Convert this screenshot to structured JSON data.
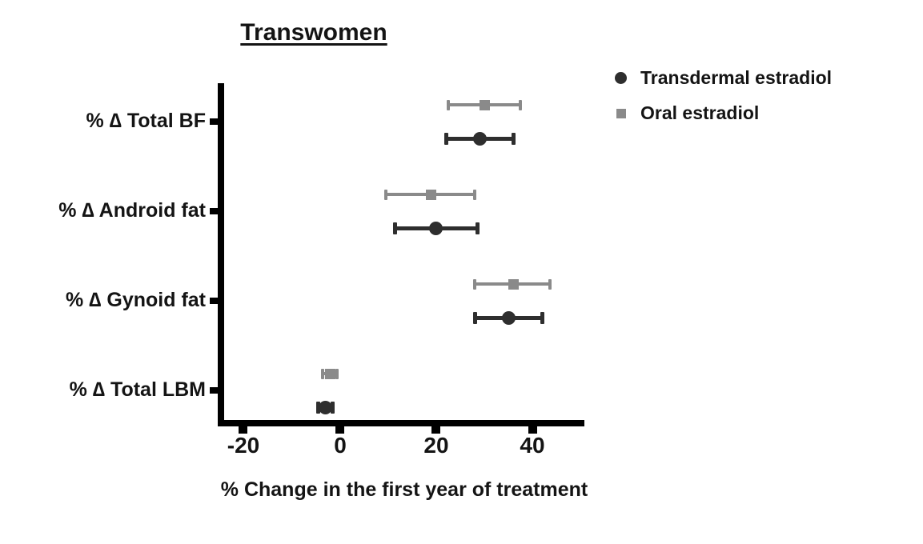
{
  "chart_data": {
    "type": "scatter",
    "title": "Transwomen",
    "xlabel": "% Change in the first year of treatment",
    "xlim": [
      -25.3,
      50.7
    ],
    "xticks": [
      {
        "value": -20,
        "label": "-20"
      },
      {
        "value": 0,
        "label": "0"
      },
      {
        "value": 20,
        "label": "20"
      },
      {
        "value": 40,
        "label": "40"
      }
    ],
    "categories": [
      "% ∆ Total BF",
      "% ∆ Android fat",
      "% ∆ Gynoid fat",
      "% ∆ Total LBM"
    ],
    "series": [
      {
        "name": "Transdermal estradiol",
        "marker": "circle",
        "color": "#2e2e2e",
        "points": [
          {
            "category": "% ∆ Total BF",
            "mean": 29,
            "low": 22,
            "high": 36
          },
          {
            "category": "% ∆ Android fat",
            "mean": 20,
            "low": 11.5,
            "high": 28.5
          },
          {
            "category": "% ∆ Gynoid fat",
            "mean": 35,
            "low": 28,
            "high": 42
          },
          {
            "category": "% ∆ Total LBM",
            "mean": -3,
            "low": -4.5,
            "high": -1.5
          }
        ]
      },
      {
        "name": "Oral estradiol",
        "marker": "square",
        "color": "#8a8a8a",
        "points": [
          {
            "category": "% ∆ Total BF",
            "mean": 30,
            "low": 22.5,
            "high": 37.5
          },
          {
            "category": "% ∆ Android fat",
            "mean": 19,
            "low": 9.5,
            "high": 28
          },
          {
            "category": "% ∆ Gynoid fat",
            "mean": 36,
            "low": 28,
            "high": 43.5
          },
          {
            "category": "% ∆ Total LBM",
            "mean": -2,
            "low": -3.5,
            "high": -0.5
          }
        ]
      }
    ],
    "legend_position": "top-right",
    "grid": false,
    "axis_color": "#000000"
  }
}
